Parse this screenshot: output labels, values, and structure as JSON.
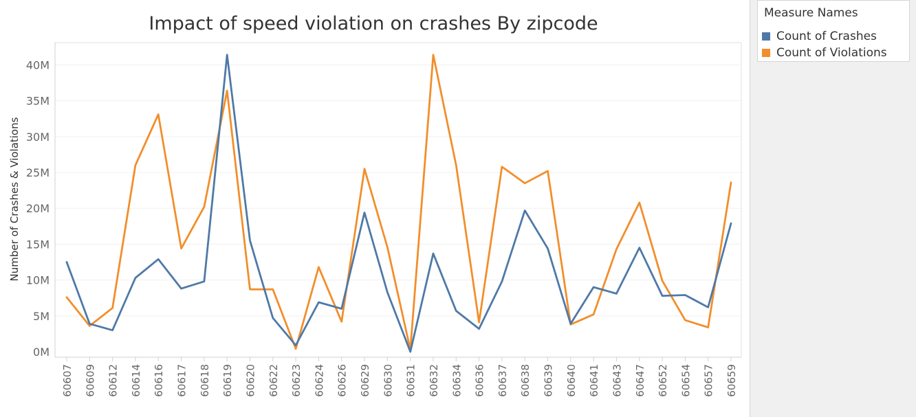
{
  "chart_data": {
    "type": "line",
    "title": "Impact of speed violation on crashes By zipcode",
    "xlabel": "",
    "ylabel": "Number of Crashes & Violations",
    "ylim": [
      0,
      41000000
    ],
    "y_ticks": [
      0,
      5000000,
      10000000,
      15000000,
      20000000,
      25000000,
      30000000,
      35000000,
      40000000
    ],
    "y_tick_labels": [
      "0M",
      "5M",
      "10M",
      "15M",
      "20M",
      "25M",
      "30M",
      "35M",
      "40M"
    ],
    "grid": "horizontal",
    "legend_position": "top-right",
    "categories": [
      "60607",
      "60609",
      "60612",
      "60614",
      "60616",
      "60617",
      "60618",
      "60619",
      "60620",
      "60622",
      "60623",
      "60624",
      "60626",
      "60629",
      "60630",
      "60631",
      "60632",
      "60634",
      "60636",
      "60637",
      "60638",
      "60639",
      "60640",
      "60641",
      "60643",
      "60647",
      "60652",
      "60654",
      "60657",
      "60659"
    ],
    "series": [
      {
        "name": "Count of Crashes",
        "color": "#4e79a7",
        "values": [
          12500000,
          3900000,
          3000000,
          10300000,
          12900000,
          8800000,
          9800000,
          41400000,
          15500000,
          4700000,
          900000,
          6900000,
          6000000,
          19400000,
          8300000,
          0,
          13700000,
          5700000,
          3200000,
          9800000,
          19700000,
          14400000,
          3900000,
          9000000,
          8100000,
          14500000,
          7800000,
          7900000,
          6200000,
          17900000
        ]
      },
      {
        "name": "Count of Violations",
        "color": "#f28e2b",
        "values": [
          7600000,
          3600000,
          6100000,
          26000000,
          33100000,
          14400000,
          20200000,
          36400000,
          8700000,
          8700000,
          400000,
          11800000,
          4200000,
          25500000,
          14600000,
          300000,
          41400000,
          26000000,
          4100000,
          25800000,
          23500000,
          25200000,
          3800000,
          5200000,
          14300000,
          20800000,
          9900000,
          4400000,
          3400000,
          23600000
        ]
      }
    ]
  },
  "legend": {
    "title": "Measure Names"
  }
}
